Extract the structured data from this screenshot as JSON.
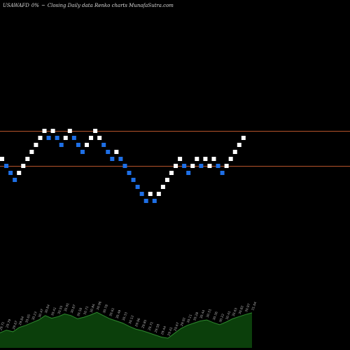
{
  "header": {
    "symbol": "USAWAFD",
    "change": "0%",
    "arrow": "~",
    "caption": "Closing Daily data Renko charts MunafaSutra.com"
  },
  "colors": {
    "background": "#000000",
    "up_brick": "#ffffff",
    "down_brick": "#1e6fe6",
    "resistance_line": "#b5542a",
    "volume_fill": "#0b3f0b",
    "volume_line": "#2e8a2e",
    "volume_label": "#b0b0b0"
  },
  "chart_data": {
    "type": "renko",
    "title": "",
    "xlabel": "",
    "ylabel": "",
    "grid": false,
    "reference_lines": [
      31.3,
      30.3
    ],
    "bricks": [
      {
        "dir": "up",
        "value": 30.5
      },
      {
        "dir": "down",
        "value": 30.3
      },
      {
        "dir": "down",
        "value": 30.1
      },
      {
        "dir": "down",
        "value": 29.9
      },
      {
        "dir": "up",
        "value": 30.1
      },
      {
        "dir": "up",
        "value": 30.3
      },
      {
        "dir": "up",
        "value": 30.5
      },
      {
        "dir": "up",
        "value": 30.7
      },
      {
        "dir": "up",
        "value": 30.9
      },
      {
        "dir": "up",
        "value": 31.1
      },
      {
        "dir": "up",
        "value": 31.3
      },
      {
        "dir": "down",
        "value": 31.1
      },
      {
        "dir": "up",
        "value": 31.3
      },
      {
        "dir": "down",
        "value": 31.1
      },
      {
        "dir": "down",
        "value": 30.9
      },
      {
        "dir": "up",
        "value": 31.1
      },
      {
        "dir": "up",
        "value": 31.3
      },
      {
        "dir": "down",
        "value": 31.1
      },
      {
        "dir": "down",
        "value": 30.9
      },
      {
        "dir": "down",
        "value": 30.7
      },
      {
        "dir": "up",
        "value": 30.9
      },
      {
        "dir": "up",
        "value": 31.1
      },
      {
        "dir": "up",
        "value": 31.3
      },
      {
        "dir": "up",
        "value": 31.1
      },
      {
        "dir": "down",
        "value": 30.9
      },
      {
        "dir": "down",
        "value": 30.7
      },
      {
        "dir": "down",
        "value": 30.5
      },
      {
        "dir": "up",
        "value": 30.7
      },
      {
        "dir": "down",
        "value": 30.5
      },
      {
        "dir": "down",
        "value": 30.3
      },
      {
        "dir": "down",
        "value": 30.1
      },
      {
        "dir": "down",
        "value": 29.9
      },
      {
        "dir": "down",
        "value": 29.7
      },
      {
        "dir": "down",
        "value": 29.5
      },
      {
        "dir": "down",
        "value": 29.3
      },
      {
        "dir": "up",
        "value": 29.5
      },
      {
        "dir": "down",
        "value": 29.3
      },
      {
        "dir": "up",
        "value": 29.5
      },
      {
        "dir": "up",
        "value": 29.7
      },
      {
        "dir": "up",
        "value": 29.9
      },
      {
        "dir": "up",
        "value": 30.1
      },
      {
        "dir": "up",
        "value": 30.3
      },
      {
        "dir": "up",
        "value": 30.5
      },
      {
        "dir": "down",
        "value": 30.3
      },
      {
        "dir": "down",
        "value": 30.1
      },
      {
        "dir": "up",
        "value": 30.3
      },
      {
        "dir": "up",
        "value": 30.5
      },
      {
        "dir": "down",
        "value": 30.3
      },
      {
        "dir": "up",
        "value": 30.5
      },
      {
        "dir": "up",
        "value": 30.3
      },
      {
        "dir": "up",
        "value": 30.5
      },
      {
        "dir": "down",
        "value": 30.3
      },
      {
        "dir": "down",
        "value": 30.1
      },
      {
        "dir": "up",
        "value": 30.3
      },
      {
        "dir": "up",
        "value": 30.5
      },
      {
        "dir": "up",
        "value": 30.7
      },
      {
        "dir": "up",
        "value": 30.9
      },
      {
        "dir": "up",
        "value": 31.1
      }
    ],
    "volume_labels": [
      "29.71",
      "29.79",
      "29.67",
      "29.84",
      "30.05",
      "30.23",
      "30.47",
      "30.84",
      "30.41",
      "30.55",
      "30.91",
      "30.87",
      "30.58",
      "30.71",
      "30.84",
      "30.96",
      "30.78",
      "30.61",
      "30.49",
      "30.33",
      "30.12",
      "29.96",
      "29.85",
      "29.71",
      "29.58",
      "29.44",
      "29.41",
      "29.67",
      "29.92",
      "30.11",
      "30.28",
      "30.44",
      "30.51",
      "30.36",
      "30.22",
      "30.41",
      "30.63",
      "30.82",
      "30.97",
      "31.04"
    ],
    "volume_levels": [
      0.28,
      0.33,
      0.3,
      0.38,
      0.42,
      0.47,
      0.52,
      0.6,
      0.55,
      0.58,
      0.63,
      0.6,
      0.54,
      0.57,
      0.61,
      0.66,
      0.6,
      0.54,
      0.5,
      0.46,
      0.4,
      0.35,
      0.32,
      0.28,
      0.24,
      0.2,
      0.18,
      0.27,
      0.36,
      0.42,
      0.46,
      0.5,
      0.52,
      0.47,
      0.43,
      0.48,
      0.54,
      0.58,
      0.62,
      0.65
    ]
  }
}
